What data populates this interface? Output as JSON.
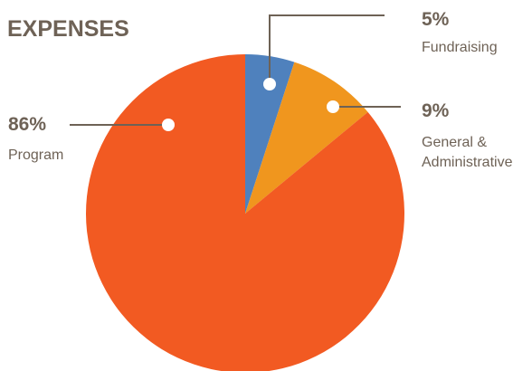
{
  "chart_data": {
    "type": "pie",
    "title": "EXPENSES",
    "slices": [
      {
        "label": "Fundraising",
        "label_lines": [
          "Fundraising"
        ],
        "percent_label": "5%",
        "value": 5,
        "color": "#4f81bd"
      },
      {
        "label": "General & Administrative",
        "label_lines": [
          "General &",
          "Administrative"
        ],
        "percent_label": "9%",
        "value": 9,
        "color": "#f0961e"
      },
      {
        "label": "Program",
        "label_lines": [
          "Program"
        ],
        "percent_label": "86%",
        "value": 86,
        "color": "#f25a22"
      }
    ],
    "legend": "none",
    "labels_style": "callouts-with-leader-lines"
  }
}
